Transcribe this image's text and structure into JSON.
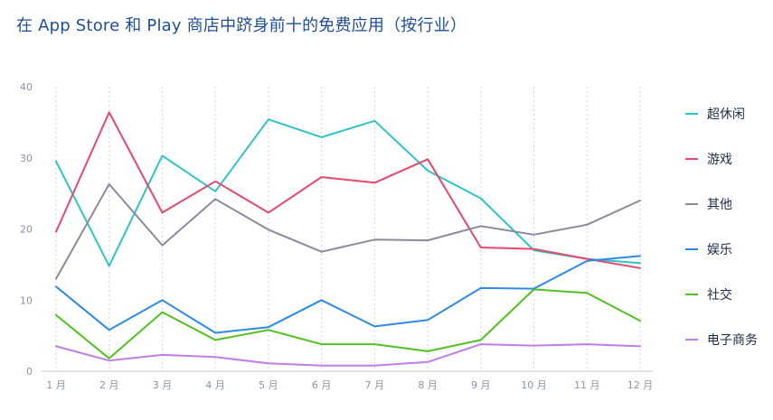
{
  "chart_data": {
    "type": "line",
    "title": "在 App Store 和 Play 商店中跻身前十的免费应用（按行业）",
    "categories": [
      "1 月",
      "2 月",
      "3 月",
      "4 月",
      "5 月",
      "6 月",
      "7 月",
      "8 月",
      "9 月",
      "10 月",
      "11 月",
      "12 月"
    ],
    "ylim": [
      0,
      40
    ],
    "yticks": [
      "0",
      "10",
      "20",
      "30",
      "40"
    ],
    "grid": "vertical-dotted",
    "legend_position": "right",
    "series": [
      {
        "name": "超休闲",
        "color": "#2ec4c6",
        "values": [
          29.5,
          14.8,
          30.3,
          25.3,
          35.4,
          32.9,
          35.2,
          28.2,
          24.3,
          17.0,
          15.8,
          15.2
        ]
      },
      {
        "name": "游戏",
        "color": "#e8486a",
        "values": [
          19.6,
          36.4,
          22.3,
          26.7,
          22.3,
          27.3,
          26.5,
          29.8,
          17.4,
          17.2,
          15.8,
          14.5
        ]
      },
      {
        "name": "其他",
        "color": "#8a8aa0",
        "values": [
          13.0,
          26.3,
          17.7,
          24.2,
          19.9,
          16.8,
          18.5,
          18.4,
          20.4,
          19.2,
          20.6,
          24.0
        ]
      },
      {
        "name": "娱乐",
        "color": "#2d8ae8",
        "values": [
          11.9,
          5.8,
          10.0,
          5.4,
          6.2,
          10.0,
          6.3,
          7.2,
          11.7,
          11.6,
          15.5,
          16.2
        ]
      },
      {
        "name": "社交",
        "color": "#4fc21f",
        "values": [
          7.9,
          1.8,
          8.3,
          4.4,
          5.8,
          3.8,
          3.8,
          2.8,
          4.4,
          11.5,
          11.0,
          7.1
        ]
      },
      {
        "name": "电子商务",
        "color": "#c07de8",
        "values": [
          3.5,
          1.5,
          2.3,
          2.0,
          1.1,
          0.8,
          0.8,
          1.3,
          3.8,
          3.6,
          3.8,
          3.5
        ]
      }
    ]
  }
}
